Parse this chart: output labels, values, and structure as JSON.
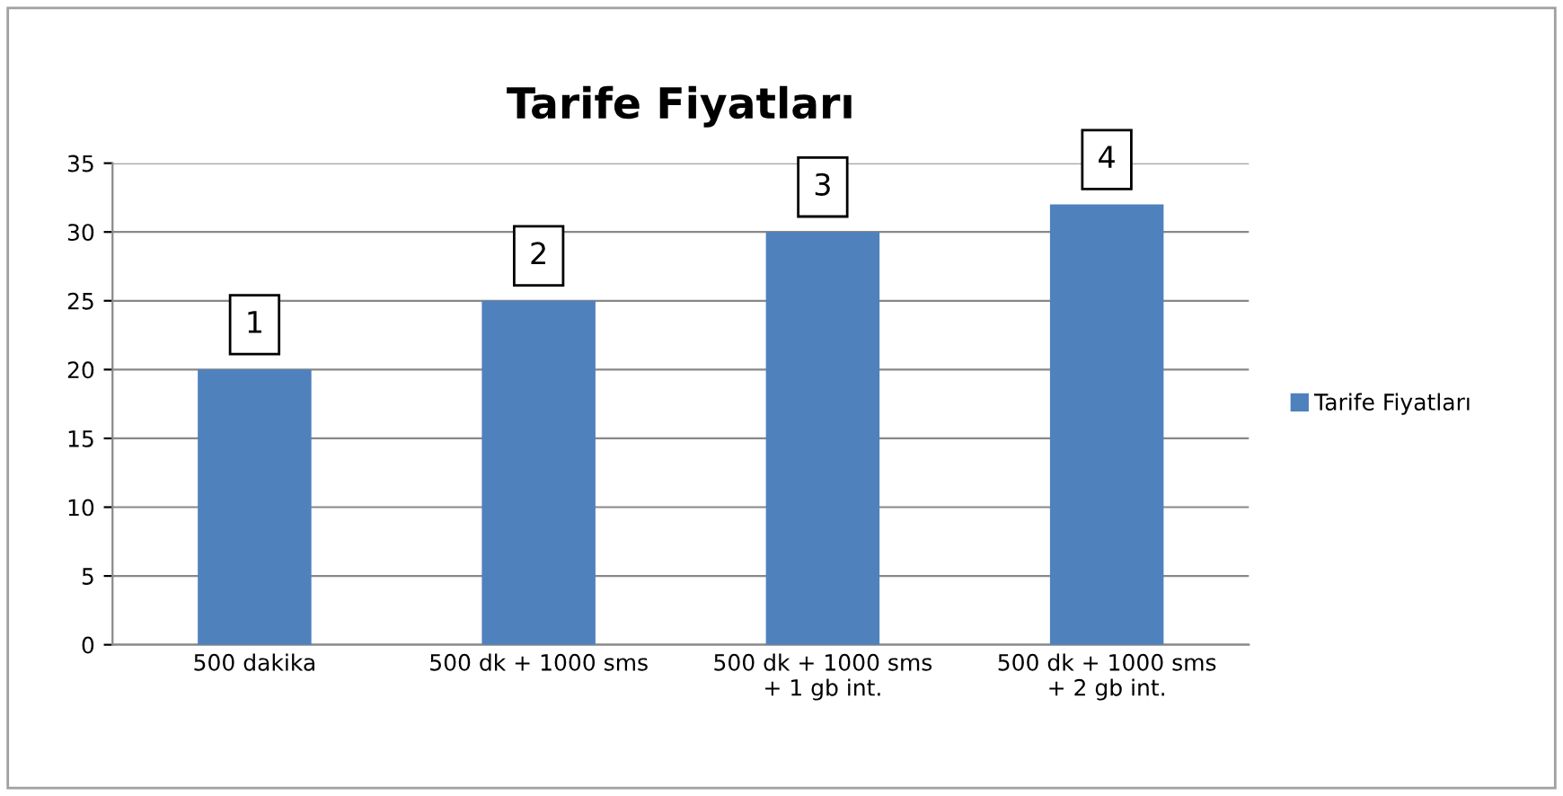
{
  "chart_data": {
    "type": "bar",
    "title": "Tarife Fiyatları",
    "categories": [
      "500 dakika",
      "500 dk + 1000 sms",
      "500 dk + 1000 sms\n+ 1 gb int.",
      "500 dk + 1000 sms\n+ 2 gb int."
    ],
    "series": [
      {
        "name": "Tarife Fiyatları",
        "color": "#4f81bd",
        "values": [
          20,
          25,
          30,
          32
        ]
      }
    ],
    "ylim": [
      0,
      35
    ],
    "yticks": [
      0,
      5,
      10,
      15,
      20,
      25,
      30,
      35
    ],
    "grid": "y",
    "legend": "right",
    "annotations": [
      {
        "text": "1",
        "x": "500 dakika",
        "y": 20
      },
      {
        "text": "2",
        "x": "500 dk + 1000 sms",
        "y": 25
      },
      {
        "text": "3",
        "x": "500 dk + 1000 sms\n+ 1 gb int.",
        "y": 30
      },
      {
        "text": "4",
        "x": "500 dk + 1000 sms\n+ 2 gb int.",
        "y": 32
      }
    ]
  }
}
